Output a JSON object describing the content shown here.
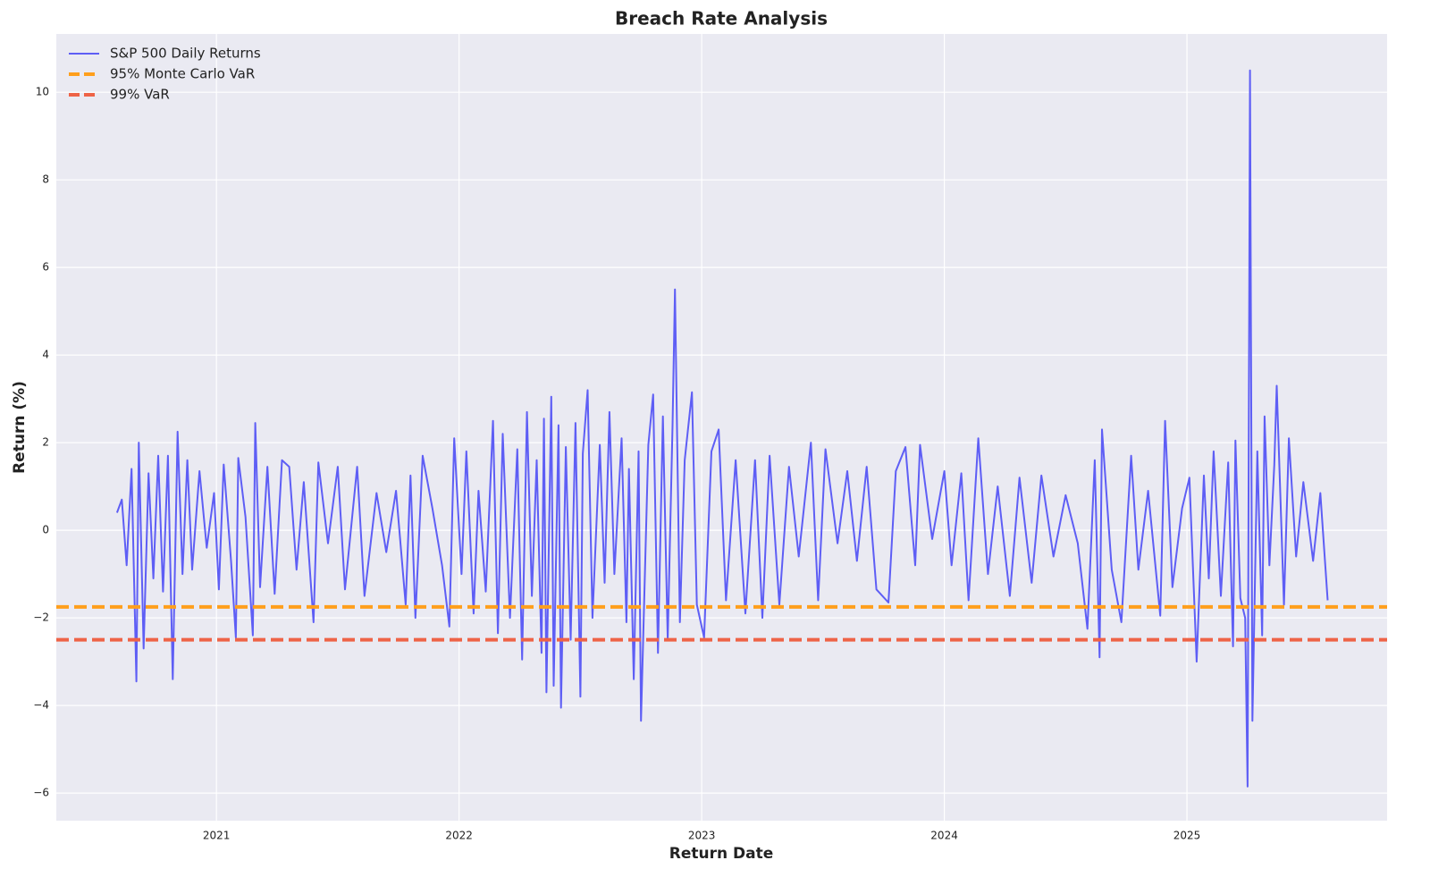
{
  "chart_data": {
    "type": "line",
    "title": "Breach Rate Analysis",
    "xlabel": "Return Date",
    "ylabel": "Return (%)",
    "xlim": [
      2020.34,
      2025.825
    ],
    "xticks": [
      2021,
      2022,
      2023,
      2024,
      2025
    ],
    "ylim": [
      -6.63,
      11.33
    ],
    "yticks": [
      {
        "value": -6,
        "label": "−6"
      },
      {
        "value": -4,
        "label": "−4"
      },
      {
        "value": -2,
        "label": "−2"
      },
      0,
      2,
      4,
      6,
      8,
      10
    ],
    "grid": true,
    "legend": "upper left",
    "series": [
      {
        "name": "S&P 500 Daily Returns",
        "color": "#5e5ef5",
        "x": [
          2020.59,
          2020.61,
          2020.63,
          2020.65,
          2020.67,
          2020.68,
          2020.7,
          2020.72,
          2020.74,
          2020.76,
          2020.78,
          2020.8,
          2020.82,
          2020.84,
          2020.86,
          2020.88,
          2020.9,
          2020.93,
          2020.96,
          2020.99,
          2021.01,
          2021.03,
          2021.06,
          2021.08,
          2021.09,
          2021.12,
          2021.15,
          2021.16,
          2021.18,
          2021.21,
          2021.24,
          2021.27,
          2021.3,
          2021.33,
          2021.36,
          2021.4,
          2021.42,
          2021.46,
          2021.5,
          2021.53,
          2021.58,
          2021.61,
          2021.66,
          2021.7,
          2021.74,
          2021.78,
          2021.8,
          2021.82,
          2021.85,
          2021.89,
          2021.93,
          2021.96,
          2021.98,
          2022.01,
          2022.03,
          2022.06,
          2022.08,
          2022.11,
          2022.14,
          2022.16,
          2022.18,
          2022.21,
          2022.24,
          2022.26,
          2022.28,
          2022.3,
          2022.32,
          2022.34,
          2022.35,
          2022.36,
          2022.38,
          2022.39,
          2022.41,
          2022.42,
          2022.44,
          2022.46,
          2022.48,
          2022.5,
          2022.51,
          2022.53,
          2022.55,
          2022.58,
          2022.6,
          2022.62,
          2022.64,
          2022.67,
          2022.69,
          2022.7,
          2022.72,
          2022.74,
          2022.75,
          2022.78,
          2022.8,
          2022.82,
          2022.84,
          2022.86,
          2022.88,
          2022.89,
          2022.91,
          2022.93,
          2022.96,
          2022.98,
          2023.01,
          2023.04,
          2023.07,
          2023.1,
          2023.14,
          2023.18,
          2023.22,
          2023.25,
          2023.28,
          2023.32,
          2023.36,
          2023.4,
          2023.45,
          2023.48,
          2023.51,
          2023.56,
          2023.6,
          2023.64,
          2023.68,
          2023.72,
          2023.77,
          2023.8,
          2023.84,
          2023.88,
          2023.9,
          2023.95,
          2024.0,
          2024.03,
          2024.07,
          2024.1,
          2024.14,
          2024.18,
          2024.22,
          2024.27,
          2024.31,
          2024.36,
          2024.4,
          2024.45,
          2024.5,
          2024.55,
          2024.59,
          2024.62,
          2024.64,
          2024.65,
          2024.69,
          2024.73,
          2024.77,
          2024.8,
          2024.84,
          2024.89,
          2024.91,
          2024.94,
          2024.98,
          2025.01,
          2025.04,
          2025.07,
          2025.09,
          2025.11,
          2025.14,
          2025.17,
          2025.19,
          2025.2,
          2025.22,
          2025.24,
          2025.25,
          2025.26,
          2025.27,
          2025.29,
          2025.31,
          2025.32,
          2025.34,
          2025.36,
          2025.37,
          2025.4,
          2025.42,
          2025.45,
          2025.48,
          2025.52,
          2025.55,
          2025.58
        ],
        "values": [
          0.4,
          0.7,
          -0.8,
          1.4,
          -3.45,
          2.0,
          -2.7,
          1.3,
          -1.1,
          1.7,
          -1.4,
          1.7,
          -3.4,
          2.25,
          -1.0,
          1.6,
          -0.9,
          1.35,
          -0.4,
          0.85,
          -1.35,
          1.5,
          -0.7,
          -2.45,
          1.65,
          0.3,
          -2.4,
          2.45,
          -1.3,
          1.45,
          -1.45,
          1.6,
          1.45,
          -0.9,
          1.1,
          -2.1,
          1.55,
          -0.3,
          1.45,
          -1.35,
          1.45,
          -1.5,
          0.85,
          -0.5,
          0.9,
          -1.7,
          1.25,
          -2.0,
          1.7,
          0.5,
          -0.8,
          -2.2,
          2.1,
          -1.0,
          1.8,
          -1.9,
          0.9,
          -1.4,
          2.5,
          -2.35,
          2.2,
          -2.0,
          1.85,
          -2.95,
          2.7,
          -1.5,
          1.6,
          -2.8,
          2.55,
          -3.7,
          3.05,
          -3.55,
          2.4,
          -4.05,
          1.9,
          -2.5,
          2.45,
          -3.8,
          1.75,
          3.2,
          -2.0,
          1.95,
          -1.2,
          2.7,
          -1.0,
          2.1,
          -2.1,
          1.4,
          -3.4,
          1.8,
          -4.35,
          1.95,
          3.1,
          -2.8,
          2.6,
          -2.5,
          2.4,
          5.5,
          -2.1,
          1.6,
          3.15,
          -1.7,
          -2.45,
          1.8,
          2.3,
          -1.6,
          1.6,
          -1.9,
          1.6,
          -2.0,
          1.7,
          -1.7,
          1.45,
          -0.6,
          2.0,
          -1.6,
          1.85,
          -0.3,
          1.35,
          -0.7,
          1.45,
          -1.35,
          -1.65,
          1.35,
          1.9,
          -0.8,
          1.95,
          -0.2,
          1.35,
          -0.8,
          1.3,
          -1.6,
          2.1,
          -1.0,
          1.0,
          -1.5,
          1.2,
          -1.2,
          1.25,
          -0.6,
          0.8,
          -0.3,
          -2.25,
          1.6,
          -2.9,
          2.3,
          -0.9,
          -2.1,
          1.7,
          -0.9,
          0.9,
          -1.95,
          2.5,
          -1.3,
          0.5,
          1.2,
          -3.0,
          1.25,
          -1.1,
          1.8,
          -1.5,
          1.55,
          -2.65,
          2.05,
          -1.55,
          -2.0,
          -5.85,
          10.5,
          -4.35,
          1.8,
          -2.4,
          2.6,
          -0.8,
          1.5,
          3.3,
          -1.7,
          2.1,
          -0.6,
          1.1,
          -0.7,
          0.85,
          -1.6
        ]
      }
    ],
    "reference_lines": [
      {
        "name": "95% Monte Carlo VaR",
        "color": "#ff9f1c",
        "value": -1.75
      },
      {
        "name": "99% VaR",
        "color": "#ee6347",
        "value": -2.5
      }
    ]
  }
}
